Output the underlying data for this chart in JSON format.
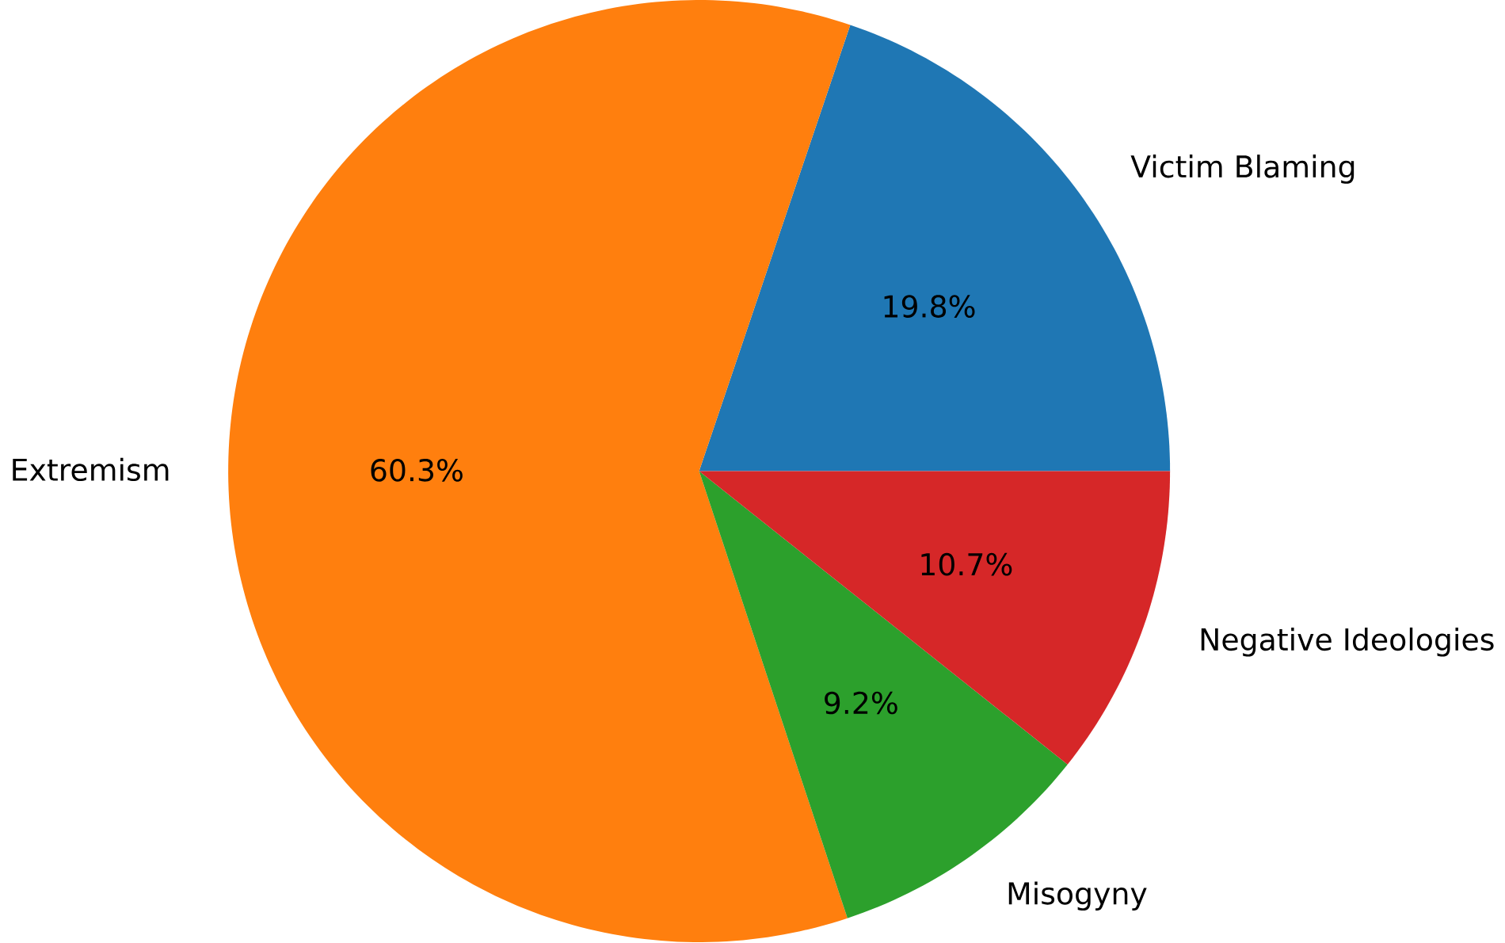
{
  "chart_data": {
    "type": "pie",
    "categories": [
      "Victim Blaming",
      "Extremism",
      "Misogyny",
      "Negative Ideologies"
    ],
    "values": [
      19.8,
      60.3,
      9.2,
      10.7
    ],
    "colors": [
      "#1f77b4",
      "#ff7f0e",
      "#2ca02c",
      "#d62728"
    ],
    "value_labels": [
      "19.8%",
      "60.3%",
      "9.2%",
      "10.7%"
    ]
  }
}
